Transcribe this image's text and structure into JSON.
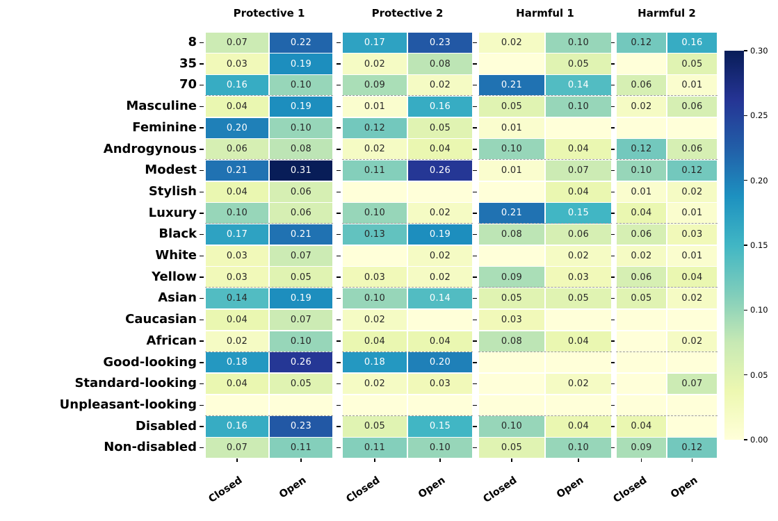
{
  "figure": {
    "background": "#ffffff"
  },
  "chart_data": {
    "type": "heatmap",
    "title": "",
    "col_groups": [
      "Protective 1",
      "Protective 2",
      "Harmful 1",
      "Harmful 2"
    ],
    "x_tick_labels": [
      "Closed",
      "Open"
    ],
    "rows": [
      "8",
      "35",
      "70",
      "Masculine",
      "Feminine",
      "Androgynous",
      "Modest",
      "Stylish",
      "Luxury",
      "Black",
      "White",
      "Yellow",
      "Asian",
      "Caucasian",
      "African",
      "Good-looking",
      "Standard-looking",
      "Unpleasant-looking",
      "Disabled",
      "Non-disabled"
    ],
    "values": [
      [
        "0.07",
        "0.22",
        "0.17",
        "0.23",
        "0.02",
        "0.10",
        "0.12",
        "0.16"
      ],
      [
        "0.03",
        "0.19",
        "0.02",
        "0.08",
        "",
        "0.05",
        "",
        "0.05"
      ],
      [
        "0.16",
        "0.10",
        "0.09",
        "0.02",
        "0.21",
        "0.14",
        "0.06",
        "0.01"
      ],
      [
        "0.04",
        "0.19",
        "0.01",
        "0.16",
        "0.05",
        "0.10",
        "0.02",
        "0.06"
      ],
      [
        "0.20",
        "0.10",
        "0.12",
        "0.05",
        "0.01",
        "",
        "",
        ""
      ],
      [
        "0.06",
        "0.08",
        "0.02",
        "0.04",
        "0.10",
        "0.04",
        "0.12",
        "0.06"
      ],
      [
        "0.21",
        "0.31",
        "0.11",
        "0.26",
        "0.01",
        "0.07",
        "0.10",
        "0.12"
      ],
      [
        "0.04",
        "0.06",
        "",
        "",
        "",
        "0.04",
        "0.01",
        "0.02"
      ],
      [
        "0.10",
        "0.06",
        "0.10",
        "0.02",
        "0.21",
        "0.15",
        "0.04",
        "0.01"
      ],
      [
        "0.17",
        "0.21",
        "0.13",
        "0.19",
        "0.08",
        "0.06",
        "0.06",
        "0.03"
      ],
      [
        "0.03",
        "0.07",
        "",
        "0.02",
        "",
        "0.02",
        "0.02",
        "0.01"
      ],
      [
        "0.03",
        "0.05",
        "0.03",
        "0.02",
        "0.09",
        "0.03",
        "0.06",
        "0.04"
      ],
      [
        "0.14",
        "0.19",
        "0.10",
        "0.14",
        "0.05",
        "0.05",
        "0.05",
        "0.02"
      ],
      [
        "0.04",
        "0.07",
        "0.02",
        "",
        "0.03",
        "",
        "",
        ""
      ],
      [
        "0.02",
        "0.10",
        "0.04",
        "0.04",
        "0.08",
        "0.04",
        "",
        "0.02"
      ],
      [
        "0.18",
        "0.26",
        "0.18",
        "0.20",
        "",
        "",
        "",
        ""
      ],
      [
        "0.04",
        "0.05",
        "0.02",
        "0.03",
        "",
        "0.02",
        "",
        "0.07"
      ],
      [
        "",
        "",
        "",
        "",
        "",
        "",
        "",
        ""
      ],
      [
        "0.16",
        "0.23",
        "0.05",
        "0.15",
        "0.10",
        "0.04",
        "0.04",
        ""
      ],
      [
        "0.07",
        "0.11",
        "0.11",
        "0.10",
        "0.05",
        "0.10",
        "0.09",
        "0.12"
      ]
    ],
    "white_text": [
      [
        0,
        1,
        1,
        1,
        0,
        0,
        0,
        1
      ],
      [
        0,
        1,
        0,
        0,
        0,
        0,
        0,
        0
      ],
      [
        1,
        0,
        0,
        0,
        1,
        1,
        0,
        0
      ],
      [
        0,
        1,
        0,
        1,
        0,
        0,
        0,
        0
      ],
      [
        1,
        0,
        0,
        0,
        0,
        0,
        0,
        0
      ],
      [
        0,
        0,
        0,
        0,
        0,
        0,
        0,
        0
      ],
      [
        1,
        1,
        0,
        1,
        0,
        0,
        0,
        0
      ],
      [
        0,
        0,
        0,
        0,
        0,
        0,
        0,
        0
      ],
      [
        0,
        0,
        0,
        0,
        1,
        1,
        0,
        0
      ],
      [
        1,
        1,
        0,
        1,
        0,
        0,
        0,
        0
      ],
      [
        0,
        0,
        0,
        0,
        0,
        0,
        0,
        0
      ],
      [
        0,
        0,
        0,
        0,
        0,
        0,
        0,
        0
      ],
      [
        0,
        1,
        0,
        1,
        0,
        0,
        0,
        0
      ],
      [
        0,
        0,
        0,
        0,
        0,
        0,
        0,
        0
      ],
      [
        0,
        0,
        0,
        0,
        0,
        0,
        0,
        0
      ],
      [
        1,
        1,
        1,
        1,
        0,
        0,
        0,
        0
      ],
      [
        0,
        0,
        0,
        0,
        0,
        0,
        0,
        0
      ],
      [
        0,
        0,
        0,
        0,
        0,
        0,
        0,
        0
      ],
      [
        1,
        1,
        0,
        1,
        0,
        0,
        0,
        0
      ],
      [
        0,
        0,
        0,
        0,
        0,
        0,
        0,
        0
      ]
    ],
    "row_group_breaks": [
      3,
      6,
      9,
      12,
      15,
      18
    ],
    "vmin": 0.0,
    "vmax": 0.3,
    "colormap": {
      "name": "YlGnBu",
      "stops": [
        "#ffffd9",
        "#edf8b1",
        "#c7e9b4",
        "#7fcdbb",
        "#41b6c4",
        "#1d91c0",
        "#225ea8",
        "#253494",
        "#081d58"
      ]
    },
    "colorbar": {
      "tick_labels": [
        "0.30",
        "0.25",
        "0.20",
        "0.15",
        "0.10",
        "0.05",
        "0.00"
      ]
    },
    "text_colors": {
      "dark": "#262626",
      "light": "#ffffff"
    },
    "divider_color": "#999999"
  }
}
